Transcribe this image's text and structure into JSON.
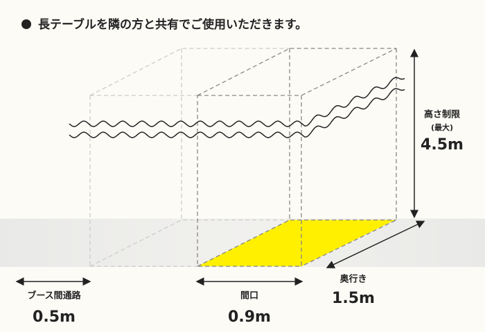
{
  "header": {
    "title": "長テーブルを隣の方と共有でご使用いただきます。"
  },
  "dimensions": {
    "height": {
      "label": "高さ制限",
      "note": "(最大)",
      "value": "4.5m"
    },
    "depth": {
      "label": "奥行き",
      "value": "1.5m"
    },
    "width": {
      "label": "間口",
      "value": "0.9m"
    },
    "aisle": {
      "label": "ブース間通路",
      "value": "0.5m"
    }
  }
}
